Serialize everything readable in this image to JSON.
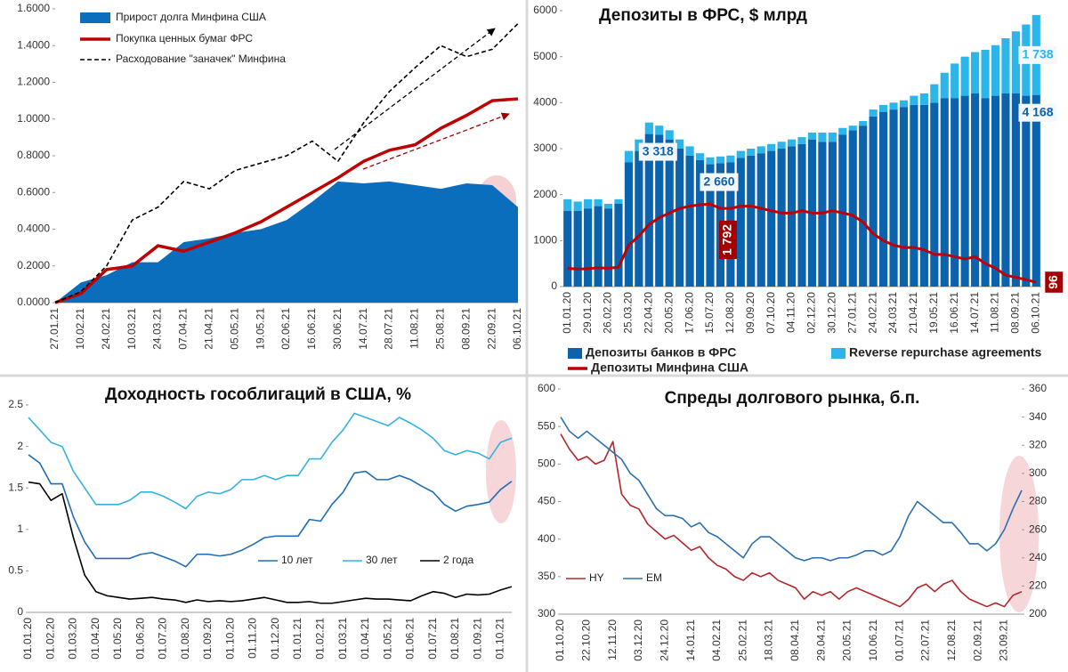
{
  "chart_data": [
    {
      "type": "combo",
      "categories": [
        "27.01.21",
        "10.02.21",
        "24.02.21",
        "10.03.21",
        "24.03.21",
        "07.04.21",
        "21.04.21",
        "05.05.21",
        "19.05.21",
        "02.06.21",
        "16.06.21",
        "30.06.21",
        "14.07.21",
        "28.07.21",
        "11.08.21",
        "25.08.21",
        "08.09.21",
        "22.09.21",
        "06.10.21"
      ],
      "series": [
        {
          "name": "Прирост долга Минфина США",
          "kind": "area",
          "color": "#0a6ebd",
          "values": [
            0,
            0.11,
            0.15,
            0.22,
            0.22,
            0.33,
            0.35,
            0.38,
            0.4,
            0.45,
            0.55,
            0.66,
            0.65,
            0.66,
            0.64,
            0.62,
            0.65,
            0.64,
            0.52
          ]
        },
        {
          "name": "Покупка ценных бумаг ФРС",
          "kind": "line",
          "color": "#c00000",
          "values": [
            0,
            0.05,
            0.18,
            0.2,
            0.31,
            0.28,
            0.33,
            0.38,
            0.44,
            0.52,
            0.6,
            0.68,
            0.77,
            0.83,
            0.86,
            0.95,
            1.02,
            1.1,
            1.11
          ]
        },
        {
          "name": "Расходование \"заначек\" Минфина",
          "kind": "dashed",
          "color": "#000000",
          "values": [
            0,
            0.06,
            0.2,
            0.45,
            0.52,
            0.66,
            0.62,
            0.72,
            0.76,
            0.8,
            0.88,
            0.77,
            0.98,
            1.15,
            1.28,
            1.4,
            1.34,
            1.38,
            1.52
          ]
        }
      ],
      "ylim": [
        0,
        1.6
      ],
      "yticks": [
        {
          "value": 0,
          "label": "0.0000"
        },
        {
          "value": 0.2,
          "label": "0.2000"
        },
        {
          "value": 0.4,
          "label": "0.4000"
        },
        {
          "value": 0.6,
          "label": "0.6000"
        },
        {
          "value": 0.8,
          "label": "0.8000"
        },
        {
          "value": 1,
          "label": "1.0000"
        },
        {
          "value": 1.2,
          "label": "1.2000"
        },
        {
          "value": 1.4,
          "label": "1.4000"
        },
        {
          "value": 1.6,
          "label": "1.6000"
        }
      ]
    },
    {
      "type": "stacked_bar",
      "title": "Депозиты в ФРС, $ млрд",
      "categories": [
        "01.01.20",
        null,
        "29.01.20",
        null,
        "26.02.20",
        null,
        "25.03.20",
        null,
        "22.04.20",
        null,
        "20.05.20",
        null,
        "17.06.20",
        null,
        "15.07.20",
        null,
        "12.08.20",
        null,
        "09.09.20",
        null,
        "07.10.20",
        null,
        "04.11.20",
        null,
        "02.12.20",
        null,
        "30.12.20",
        null,
        "27.01.21",
        null,
        "24.02.21",
        null,
        "24.03.21",
        null,
        "21.04.21",
        null,
        "19.05.21",
        null,
        "16.06.21",
        null,
        "14.07.21",
        null,
        "11.08.21",
        null,
        "08.09.21",
        null,
        "06.10.21"
      ],
      "series": [
        {
          "name": "Депозиты банков в ФРС",
          "kind": "bar",
          "color": "#0b62ad",
          "values": [
            1650,
            1650,
            1700,
            1750,
            1700,
            1800,
            2700,
            2950,
            3318,
            3300,
            3200,
            3000,
            2850,
            2750,
            2660,
            2680,
            2700,
            2800,
            2850,
            2900,
            2950,
            3000,
            3050,
            3100,
            3200,
            3150,
            3150,
            3300,
            3400,
            3500,
            3700,
            3800,
            3850,
            3900,
            3950,
            3950,
            4000,
            4100,
            4100,
            4150,
            4200,
            4100,
            4150,
            4200,
            4200,
            4150,
            4168
          ],
          "value_labels": [
            null,
            null,
            null,
            null,
            null,
            null,
            null,
            null,
            "3 318",
            null,
            null,
            null,
            null,
            null,
            "2 660",
            null,
            null,
            null,
            null,
            null,
            null,
            null,
            null,
            null,
            null,
            null,
            null,
            null,
            null,
            null,
            null,
            null,
            null,
            null,
            null,
            null,
            null,
            null,
            null,
            null,
            null,
            null,
            null,
            null,
            null,
            null,
            "4 168"
          ]
        },
        {
          "name": "Reverse repurchase agreements",
          "kind": "bar",
          "color": "#2bb5e8",
          "values": [
            250,
            200,
            200,
            150,
            100,
            100,
            250,
            250,
            250,
            200,
            200,
            200,
            200,
            150,
            150,
            150,
            150,
            150,
            150,
            150,
            150,
            150,
            150,
            150,
            150,
            200,
            200,
            150,
            100,
            100,
            150,
            150,
            150,
            150,
            200,
            250,
            400,
            550,
            750,
            850,
            900,
            1050,
            1100,
            1200,
            1350,
            1550,
            1738
          ],
          "value_labels": [
            null,
            null,
            null,
            null,
            null,
            null,
            null,
            null,
            null,
            null,
            null,
            null,
            null,
            null,
            null,
            null,
            null,
            null,
            null,
            null,
            null,
            null,
            null,
            null,
            null,
            null,
            null,
            null,
            null,
            null,
            null,
            null,
            null,
            null,
            null,
            null,
            null,
            null,
            null,
            null,
            null,
            null,
            null,
            null,
            null,
            null,
            "1 738"
          ]
        },
        {
          "name": "Депозиты Минфина США",
          "kind": "line",
          "color": "#c00000",
          "values": [
            400,
            380,
            390,
            410,
            400,
            420,
            900,
            1100,
            1350,
            1500,
            1600,
            1700,
            1750,
            1780,
            1792,
            1700,
            1700,
            1750,
            1750,
            1700,
            1650,
            1600,
            1600,
            1650,
            1600,
            1600,
            1650,
            1600,
            1550,
            1400,
            1150,
            1000,
            900,
            850,
            850,
            800,
            700,
            700,
            650,
            600,
            650,
            500,
            400,
            250,
            200,
            150,
            96
          ],
          "value_labels": [
            null,
            null,
            null,
            null,
            null,
            null,
            null,
            null,
            null,
            null,
            null,
            null,
            null,
            null,
            "1 792",
            null,
            null,
            null,
            null,
            null,
            null,
            null,
            null,
            null,
            null,
            null,
            null,
            null,
            null,
            null,
            null,
            null,
            null,
            null,
            null,
            null,
            null,
            null,
            null,
            null,
            null,
            null,
            null,
            null,
            null,
            null,
            "96"
          ]
        }
      ],
      "ylim": [
        0,
        6000
      ],
      "yticks": [
        0,
        1000,
        2000,
        3000,
        4000,
        5000,
        6000
      ]
    },
    {
      "type": "line",
      "title": "Доходность гособлигаций в США, %",
      "categories": [
        "01.01.20",
        null,
        "01.02.20",
        null,
        "01.03.20",
        null,
        "01.04.20",
        null,
        "01.05.20",
        null,
        "01.06.20",
        null,
        "01.07.20",
        null,
        "01.08.20",
        null,
        "01.09.20",
        null,
        "01.10.20",
        null,
        "01.11.20",
        null,
        "01.12.20",
        null,
        "01.01.21",
        null,
        "01.02.21",
        null,
        "01.03.21",
        null,
        "01.04.21",
        null,
        "01.05.21",
        null,
        "01.06.21",
        null,
        "01.07.21",
        null,
        "01.08.21",
        null,
        "01.09.21",
        null,
        "01.10.21",
        null
      ],
      "series": [
        {
          "name": "10 лет",
          "kind": "line",
          "color": "#1f6db5",
          "values": [
            1.9,
            1.8,
            1.55,
            1.55,
            1.15,
            0.85,
            0.65,
            0.65,
            0.65,
            0.65,
            0.7,
            0.72,
            0.67,
            0.62,
            0.55,
            0.7,
            0.7,
            0.68,
            0.7,
            0.75,
            0.82,
            0.9,
            0.92,
            0.92,
            0.92,
            1.12,
            1.1,
            1.3,
            1.45,
            1.68,
            1.7,
            1.6,
            1.6,
            1.65,
            1.6,
            1.52,
            1.45,
            1.3,
            1.22,
            1.28,
            1.3,
            1.33,
            1.48,
            1.58
          ]
        },
        {
          "name": "30 лет",
          "kind": "line",
          "color": "#33b3e0",
          "values": [
            2.35,
            2.2,
            2.05,
            2.0,
            1.7,
            1.5,
            1.3,
            1.3,
            1.3,
            1.35,
            1.45,
            1.45,
            1.4,
            1.33,
            1.25,
            1.4,
            1.45,
            1.43,
            1.48,
            1.6,
            1.6,
            1.65,
            1.6,
            1.65,
            1.65,
            1.85,
            1.85,
            2.05,
            2.2,
            2.4,
            2.35,
            2.3,
            2.25,
            2.35,
            2.28,
            2.2,
            2.1,
            1.95,
            1.9,
            1.95,
            1.92,
            1.85,
            2.05,
            2.1
          ]
        },
        {
          "name": "2 года",
          "kind": "line",
          "color": "#000000",
          "values": [
            1.57,
            1.55,
            1.35,
            1.43,
            0.9,
            0.45,
            0.25,
            0.2,
            0.18,
            0.16,
            0.17,
            0.18,
            0.16,
            0.15,
            0.12,
            0.15,
            0.13,
            0.14,
            0.13,
            0.14,
            0.16,
            0.18,
            0.15,
            0.12,
            0.12,
            0.13,
            0.11,
            0.11,
            0.13,
            0.15,
            0.17,
            0.16,
            0.16,
            0.15,
            0.14,
            0.2,
            0.25,
            0.23,
            0.18,
            0.22,
            0.21,
            0.22,
            0.27,
            0.31
          ]
        }
      ],
      "ylim": [
        0,
        2.5
      ],
      "yticks": [
        0,
        0.5,
        1,
        1.5,
        2,
        2.5
      ]
    },
    {
      "type": "line",
      "title": "Спреды долгового рынка, б.п.",
      "categories": [
        "01.10.20",
        null,
        null,
        "22.10.20",
        null,
        null,
        "12.11.20",
        null,
        null,
        "03.12.20",
        null,
        null,
        "24.12.20",
        null,
        null,
        "14.01.21",
        null,
        null,
        "04.02.21",
        null,
        null,
        "25.02.21",
        null,
        null,
        "18.03.21",
        null,
        null,
        "08.04.21",
        null,
        null,
        "29.04.21",
        null,
        null,
        "20.05.21",
        null,
        null,
        "10.06.21",
        null,
        null,
        "01.07.21",
        null,
        null,
        "22.07.21",
        null,
        null,
        "12.08.21",
        null,
        null,
        "02.09.21",
        null,
        null,
        "23.09.21",
        null,
        null
      ],
      "series": [
        {
          "name": "HY",
          "kind": "line",
          "color": "#b3262b",
          "values": [
            540,
            520,
            505,
            510,
            500,
            505,
            530,
            460,
            445,
            440,
            420,
            410,
            400,
            405,
            395,
            385,
            390,
            375,
            365,
            360,
            350,
            345,
            355,
            350,
            355,
            345,
            340,
            335,
            320,
            330,
            325,
            330,
            320,
            330,
            335,
            330,
            325,
            320,
            315,
            310,
            320,
            335,
            340,
            330,
            340,
            345,
            330,
            320,
            315,
            310,
            315,
            310,
            325,
            330
          ]
        },
        {
          "name": "EM",
          "kind": "line",
          "axis": "y2",
          "color": "#2a70b0",
          "values": [
            340,
            330,
            325,
            330,
            325,
            320,
            315,
            310,
            300,
            295,
            285,
            275,
            270,
            270,
            268,
            262,
            265,
            258,
            255,
            250,
            245,
            240,
            250,
            255,
            255,
            250,
            245,
            240,
            238,
            240,
            240,
            238,
            240,
            240,
            242,
            245,
            245,
            242,
            245,
            255,
            270,
            280,
            275,
            270,
            265,
            265,
            258,
            250,
            250,
            245,
            250,
            260,
            275,
            288
          ]
        }
      ],
      "ylim": [
        300,
        600
      ],
      "yticks": [
        300,
        350,
        400,
        450,
        500,
        550,
        600
      ],
      "y2lim": [
        200,
        360
      ],
      "y2ticks": [
        200,
        220,
        240,
        260,
        280,
        300,
        320,
        340,
        360
      ]
    }
  ]
}
